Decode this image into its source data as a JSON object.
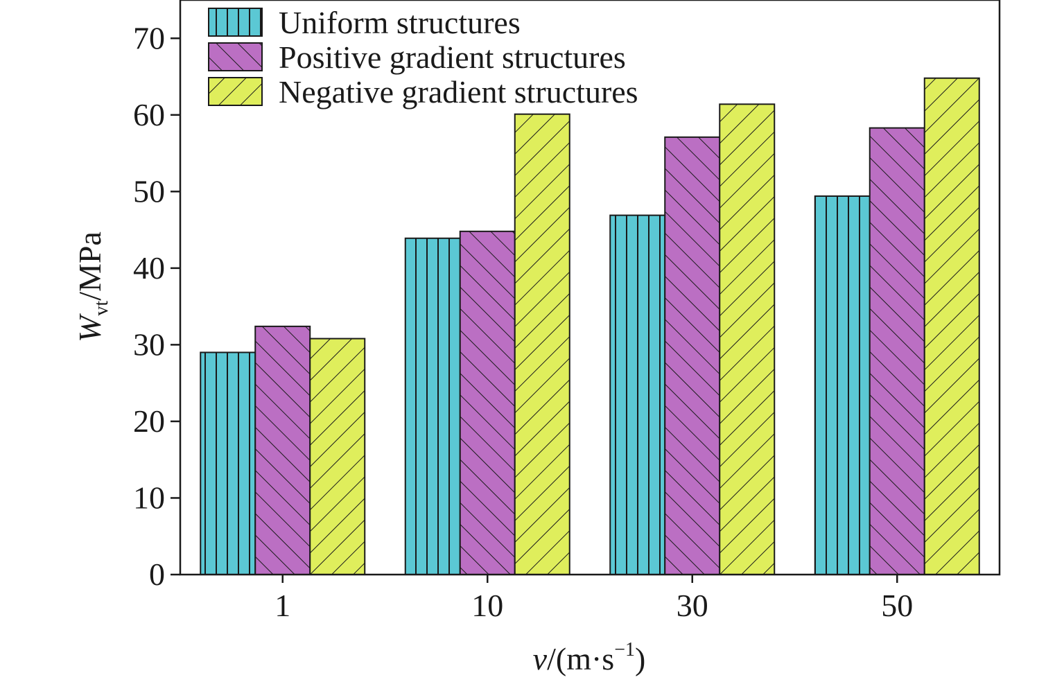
{
  "chart_data": {
    "type": "bar",
    "categories": [
      "1",
      "10",
      "30",
      "50"
    ],
    "series": [
      {
        "name": "Uniform structures",
        "values": [
          29.0,
          43.9,
          46.9,
          49.4
        ],
        "color": "#5bc8d4",
        "hatch": "vertical"
      },
      {
        "name": "Positive gradient structures",
        "values": [
          32.4,
          44.8,
          57.1,
          58.3
        ],
        "color": "#bb6fc3",
        "hatch": "backslash"
      },
      {
        "name": "Negative gradient structures",
        "values": [
          30.8,
          60.1,
          61.4,
          64.8
        ],
        "color": "#dfee5c",
        "hatch": "slash"
      }
    ],
    "ylim": [
      0,
      75
    ],
    "yticks": [
      0,
      10,
      20,
      30,
      40,
      50,
      60,
      70
    ],
    "xlabel": {
      "var": "v",
      "unit": "/(m·s",
      "sup": "−1",
      "close": ")"
    },
    "ylabel": {
      "var": "W",
      "sub": "vt",
      "unit": "/MPa"
    },
    "legend_position": "top-left",
    "grid": false
  }
}
